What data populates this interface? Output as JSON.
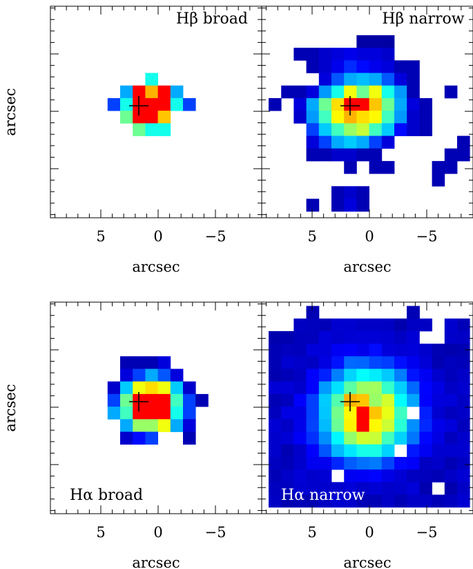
{
  "figure": {
    "panels": [
      {
        "id": "hbeta-broad",
        "label": "Hβ broad",
        "label_position": "top-right",
        "label_color": "#000000",
        "xlabel": "arcsec",
        "ylabel": "arcsec",
        "x_ticks": [
          "5",
          "0",
          "−5"
        ],
        "pixels": [
          {
            "c": 7,
            "r": 5,
            "v": 0.45
          },
          {
            "c": 5,
            "r": 6,
            "v": 0.3
          },
          {
            "c": 6,
            "r": 6,
            "v": 1.0
          },
          {
            "c": 7,
            "r": 6,
            "v": 0.8
          },
          {
            "c": 8,
            "r": 6,
            "v": 1.0
          },
          {
            "c": 9,
            "r": 6,
            "v": 0.3
          },
          {
            "c": 4,
            "r": 7,
            "v": 0.2
          },
          {
            "c": 5,
            "r": 7,
            "v": 0.45
          },
          {
            "c": 6,
            "r": 7,
            "v": 1.0
          },
          {
            "c": 7,
            "r": 7,
            "v": 1.0
          },
          {
            "c": 8,
            "r": 7,
            "v": 1.0
          },
          {
            "c": 9,
            "r": 7,
            "v": 0.45
          },
          {
            "c": 10,
            "r": 7,
            "v": 0.2
          },
          {
            "c": 5,
            "r": 8,
            "v": 0.55
          },
          {
            "c": 6,
            "r": 8,
            "v": 1.0
          },
          {
            "c": 7,
            "r": 8,
            "v": 1.0
          },
          {
            "c": 8,
            "r": 8,
            "v": 0.78
          },
          {
            "c": 6,
            "r": 9,
            "v": 0.55
          },
          {
            "c": 7,
            "r": 9,
            "v": 0.45
          },
          {
            "c": 8,
            "r": 9,
            "v": 0.45
          }
        ]
      },
      {
        "id": "hbeta-narrow",
        "label": "Hβ narrow",
        "label_position": "top-right",
        "label_color": "#000000",
        "xlabel": "arcsec",
        "ylabel": "",
        "x_ticks": [
          "5",
          "0",
          "−5"
        ],
        "pixels": [
          {
            "c": 7,
            "r": 2,
            "v": 0.03
          },
          {
            "c": 8,
            "r": 2,
            "v": 0.03
          },
          {
            "c": 9,
            "r": 2,
            "v": 0.03
          },
          {
            "c": 2,
            "r": 3,
            "v": 0.05
          },
          {
            "c": 3,
            "r": 3,
            "v": 0.05
          },
          {
            "c": 4,
            "r": 3,
            "v": 0.08
          },
          {
            "c": 5,
            "r": 3,
            "v": 0.1
          },
          {
            "c": 6,
            "r": 3,
            "v": 0.12
          },
          {
            "c": 7,
            "r": 3,
            "v": 0.1
          },
          {
            "c": 8,
            "r": 3,
            "v": 0.1
          },
          {
            "c": 9,
            "r": 3,
            "v": 0.08
          },
          {
            "c": 3,
            "r": 4,
            "v": 0.05
          },
          {
            "c": 4,
            "r": 4,
            "v": 0.08
          },
          {
            "c": 5,
            "r": 4,
            "v": 0.12
          },
          {
            "c": 6,
            "r": 4,
            "v": 0.18
          },
          {
            "c": 7,
            "r": 4,
            "v": 0.15
          },
          {
            "c": 8,
            "r": 4,
            "v": 0.12
          },
          {
            "c": 9,
            "r": 4,
            "v": 0.1
          },
          {
            "c": 10,
            "r": 4,
            "v": 0.05
          },
          {
            "c": 11,
            "r": 4,
            "v": 0.05
          },
          {
            "c": 4,
            "r": 5,
            "v": 0.1
          },
          {
            "c": 5,
            "r": 5,
            "v": 0.22
          },
          {
            "c": 6,
            "r": 5,
            "v": 0.3
          },
          {
            "c": 7,
            "r": 5,
            "v": 0.33
          },
          {
            "c": 8,
            "r": 5,
            "v": 0.3
          },
          {
            "c": 9,
            "r": 5,
            "v": 0.22
          },
          {
            "c": 10,
            "r": 5,
            "v": 0.1
          },
          {
            "c": 11,
            "r": 5,
            "v": 0.05
          },
          {
            "c": 1,
            "r": 6,
            "v": 0.05
          },
          {
            "c": 2,
            "r": 6,
            "v": 0.05
          },
          {
            "c": 3,
            "r": 6,
            "v": 0.1
          },
          {
            "c": 4,
            "r": 6,
            "v": 0.28
          },
          {
            "c": 5,
            "r": 6,
            "v": 0.45
          },
          {
            "c": 6,
            "r": 6,
            "v": 0.7
          },
          {
            "c": 7,
            "r": 6,
            "v": 0.55
          },
          {
            "c": 8,
            "r": 6,
            "v": 0.7
          },
          {
            "c": 9,
            "r": 6,
            "v": 0.45
          },
          {
            "c": 10,
            "r": 6,
            "v": 0.28
          },
          {
            "c": 11,
            "r": 6,
            "v": 0.05
          },
          {
            "c": 14,
            "r": 6,
            "v": 0.05
          },
          {
            "c": 0,
            "r": 7,
            "v": 0.05
          },
          {
            "c": 2,
            "r": 7,
            "v": 0.1
          },
          {
            "c": 3,
            "r": 7,
            "v": 0.3
          },
          {
            "c": 4,
            "r": 7,
            "v": 0.55
          },
          {
            "c": 5,
            "r": 7,
            "v": 0.75
          },
          {
            "c": 6,
            "r": 7,
            "v": 1.0
          },
          {
            "c": 7,
            "r": 7,
            "v": 1.0
          },
          {
            "c": 8,
            "r": 7,
            "v": 0.78
          },
          {
            "c": 9,
            "r": 7,
            "v": 0.55
          },
          {
            "c": 10,
            "r": 7,
            "v": 0.3
          },
          {
            "c": 11,
            "r": 7,
            "v": 0.1
          },
          {
            "c": 12,
            "r": 7,
            "v": 0.05
          },
          {
            "c": 2,
            "r": 8,
            "v": 0.08
          },
          {
            "c": 3,
            "r": 8,
            "v": 0.28
          },
          {
            "c": 4,
            "r": 8,
            "v": 0.5
          },
          {
            "c": 5,
            "r": 8,
            "v": 0.72
          },
          {
            "c": 6,
            "r": 8,
            "v": 0.8
          },
          {
            "c": 7,
            "r": 8,
            "v": 0.75
          },
          {
            "c": 8,
            "r": 8,
            "v": 0.72
          },
          {
            "c": 9,
            "r": 8,
            "v": 0.5
          },
          {
            "c": 10,
            "r": 8,
            "v": 0.28
          },
          {
            "c": 11,
            "r": 8,
            "v": 0.08
          },
          {
            "c": 12,
            "r": 8,
            "v": 0.05
          },
          {
            "c": 3,
            "r": 9,
            "v": 0.2
          },
          {
            "c": 4,
            "r": 9,
            "v": 0.35
          },
          {
            "c": 5,
            "r": 9,
            "v": 0.5
          },
          {
            "c": 6,
            "r": 9,
            "v": 0.6
          },
          {
            "c": 7,
            "r": 9,
            "v": 0.65
          },
          {
            "c": 8,
            "r": 9,
            "v": 0.5
          },
          {
            "c": 9,
            "r": 9,
            "v": 0.35
          },
          {
            "c": 10,
            "r": 9,
            "v": 0.15
          },
          {
            "c": 11,
            "r": 9,
            "v": 0.08
          },
          {
            "c": 12,
            "r": 9,
            "v": 0.05
          },
          {
            "c": 3,
            "r": 10,
            "v": 0.1
          },
          {
            "c": 4,
            "r": 10,
            "v": 0.2
          },
          {
            "c": 5,
            "r": 10,
            "v": 0.3
          },
          {
            "c": 6,
            "r": 10,
            "v": 0.35
          },
          {
            "c": 7,
            "r": 10,
            "v": 0.3
          },
          {
            "c": 8,
            "r": 10,
            "v": 0.2
          },
          {
            "c": 9,
            "r": 10,
            "v": 0.1
          },
          {
            "c": 15,
            "r": 10,
            "v": 0.05
          },
          {
            "c": 3,
            "r": 11,
            "v": 0.05
          },
          {
            "c": 4,
            "r": 11,
            "v": 0.05
          },
          {
            "c": 5,
            "r": 11,
            "v": 0.08
          },
          {
            "c": 6,
            "r": 11,
            "v": 0.08
          },
          {
            "c": 7,
            "r": 11,
            "v": 0.05
          },
          {
            "c": 8,
            "r": 11,
            "v": 0.05
          },
          {
            "c": 14,
            "r": 11,
            "v": 0.05
          },
          {
            "c": 15,
            "r": 11,
            "v": 0.05
          },
          {
            "c": 6,
            "r": 12,
            "v": 0.05
          },
          {
            "c": 8,
            "r": 12,
            "v": 0.05
          },
          {
            "c": 9,
            "r": 12,
            "v": 0.05
          },
          {
            "c": 13,
            "r": 12,
            "v": 0.05
          },
          {
            "c": 14,
            "r": 12,
            "v": 0.05
          },
          {
            "c": 13,
            "r": 13,
            "v": 0.05
          },
          {
            "c": 5,
            "r": 14,
            "v": 0.05
          },
          {
            "c": 6,
            "r": 14,
            "v": 0.08
          },
          {
            "c": 7,
            "r": 14,
            "v": 0.05
          },
          {
            "c": 3,
            "r": 15,
            "v": 0.05
          },
          {
            "c": 5,
            "r": 15,
            "v": 0.05
          },
          {
            "c": 6,
            "r": 15,
            "v": 0.1
          },
          {
            "c": 7,
            "r": 15,
            "v": 0.05
          }
        ]
      },
      {
        "id": "halpha-broad",
        "label": "Hα broad",
        "label_position": "bottom-left",
        "label_color": "#000000",
        "xlabel": "arcsec",
        "ylabel": "arcsec",
        "x_ticks": [
          "5",
          "0",
          "−5"
        ],
        "pixels": [
          {
            "c": 5,
            "r": 4,
            "v": 0.05
          },
          {
            "c": 6,
            "r": 4,
            "v": 0.05
          },
          {
            "c": 7,
            "r": 4,
            "v": 0.05
          },
          {
            "c": 8,
            "r": 4,
            "v": 0.1
          },
          {
            "c": 5,
            "r": 5,
            "v": 0.1
          },
          {
            "c": 6,
            "r": 5,
            "v": 0.2
          },
          {
            "c": 7,
            "r": 5,
            "v": 0.3
          },
          {
            "c": 8,
            "r": 5,
            "v": 0.22
          },
          {
            "c": 9,
            "r": 5,
            "v": 0.1
          },
          {
            "c": 4,
            "r": 6,
            "v": 0.08
          },
          {
            "c": 5,
            "r": 6,
            "v": 0.35
          },
          {
            "c": 6,
            "r": 6,
            "v": 0.7
          },
          {
            "c": 7,
            "r": 6,
            "v": 0.75
          },
          {
            "c": 8,
            "r": 6,
            "v": 0.7
          },
          {
            "c": 9,
            "r": 6,
            "v": 0.35
          },
          {
            "c": 10,
            "r": 6,
            "v": 0.08
          },
          {
            "c": 4,
            "r": 7,
            "v": 0.2
          },
          {
            "c": 5,
            "r": 7,
            "v": 0.55
          },
          {
            "c": 6,
            "r": 7,
            "v": 1.0
          },
          {
            "c": 7,
            "r": 7,
            "v": 1.0
          },
          {
            "c": 8,
            "r": 7,
            "v": 1.0
          },
          {
            "c": 9,
            "r": 7,
            "v": 0.5
          },
          {
            "c": 10,
            "r": 7,
            "v": 0.2
          },
          {
            "c": 11,
            "r": 7,
            "v": 0.05
          },
          {
            "c": 4,
            "r": 8,
            "v": 0.3
          },
          {
            "c": 5,
            "r": 8,
            "v": 0.5
          },
          {
            "c": 6,
            "r": 8,
            "v": 1.0
          },
          {
            "c": 7,
            "r": 8,
            "v": 1.0
          },
          {
            "c": 8,
            "r": 8,
            "v": 1.0
          },
          {
            "c": 9,
            "r": 8,
            "v": 0.45
          },
          {
            "c": 10,
            "r": 8,
            "v": 0.2
          },
          {
            "c": 5,
            "r": 9,
            "v": 0.3
          },
          {
            "c": 6,
            "r": 9,
            "v": 0.6
          },
          {
            "c": 7,
            "r": 9,
            "v": 0.6
          },
          {
            "c": 8,
            "r": 9,
            "v": 0.7
          },
          {
            "c": 9,
            "r": 9,
            "v": 0.3
          },
          {
            "c": 10,
            "r": 9,
            "v": 0.1
          },
          {
            "c": 5,
            "r": 10,
            "v": 0.08
          },
          {
            "c": 6,
            "r": 10,
            "v": 0.15
          },
          {
            "c": 7,
            "r": 10,
            "v": 0.2
          },
          {
            "c": 10,
            "r": 10,
            "v": 0.05
          }
        ]
      },
      {
        "id": "halpha-narrow",
        "label": "Hα narrow",
        "label_position": "bottom-left",
        "label_color": "#ffffff",
        "xlabel": "arcsec",
        "ylabel": "",
        "x_ticks": [
          "5",
          "0",
          "−5"
        ],
        "pixels_rule": "full-grid",
        "missing_pixels": [
          {
            "c": 0,
            "r": 0
          },
          {
            "c": 1,
            "r": 0
          },
          {
            "c": 2,
            "r": 0
          },
          {
            "c": 4,
            "r": 0
          },
          {
            "c": 5,
            "r": 0
          },
          {
            "c": 6,
            "r": 0
          },
          {
            "c": 7,
            "r": 0
          },
          {
            "c": 8,
            "r": 0
          },
          {
            "c": 9,
            "r": 0
          },
          {
            "c": 10,
            "r": 0
          },
          {
            "c": 12,
            "r": 0
          },
          {
            "c": 13,
            "r": 0
          },
          {
            "c": 14,
            "r": 0
          },
          {
            "c": 15,
            "r": 0
          },
          {
            "c": 0,
            "r": 1
          },
          {
            "c": 1,
            "r": 1
          },
          {
            "c": 13,
            "r": 1
          },
          {
            "c": 12,
            "r": 2
          },
          {
            "c": 13,
            "r": 2
          },
          {
            "c": 11,
            "r": 8
          },
          {
            "c": 10,
            "r": 11
          },
          {
            "c": 5,
            "r": 13
          },
          {
            "c": 13,
            "r": 14
          }
        ],
        "peak": {
          "c": 7.3,
          "r": 8.1
        },
        "peak_values": [
          {
            "c": 6,
            "r": 7,
            "v": 0.8
          },
          {
            "c": 7,
            "r": 7,
            "v": 0.78
          },
          {
            "c": 8,
            "r": 7,
            "v": 0.6
          },
          {
            "c": 6,
            "r": 8,
            "v": 0.72
          },
          {
            "c": 7,
            "r": 8,
            "v": 1.0
          },
          {
            "c": 8,
            "r": 8,
            "v": 0.78
          },
          {
            "c": 7,
            "r": 9,
            "v": 1.0
          },
          {
            "c": 8,
            "r": 9,
            "v": 0.72
          }
        ]
      }
    ],
    "colormap": [
      "#00008b",
      "#0000ff",
      "#00a0ff",
      "#00ffff",
      "#80ff80",
      "#ffff00",
      "#ff8000",
      "#ff0000"
    ],
    "cross_color": "#000000"
  }
}
